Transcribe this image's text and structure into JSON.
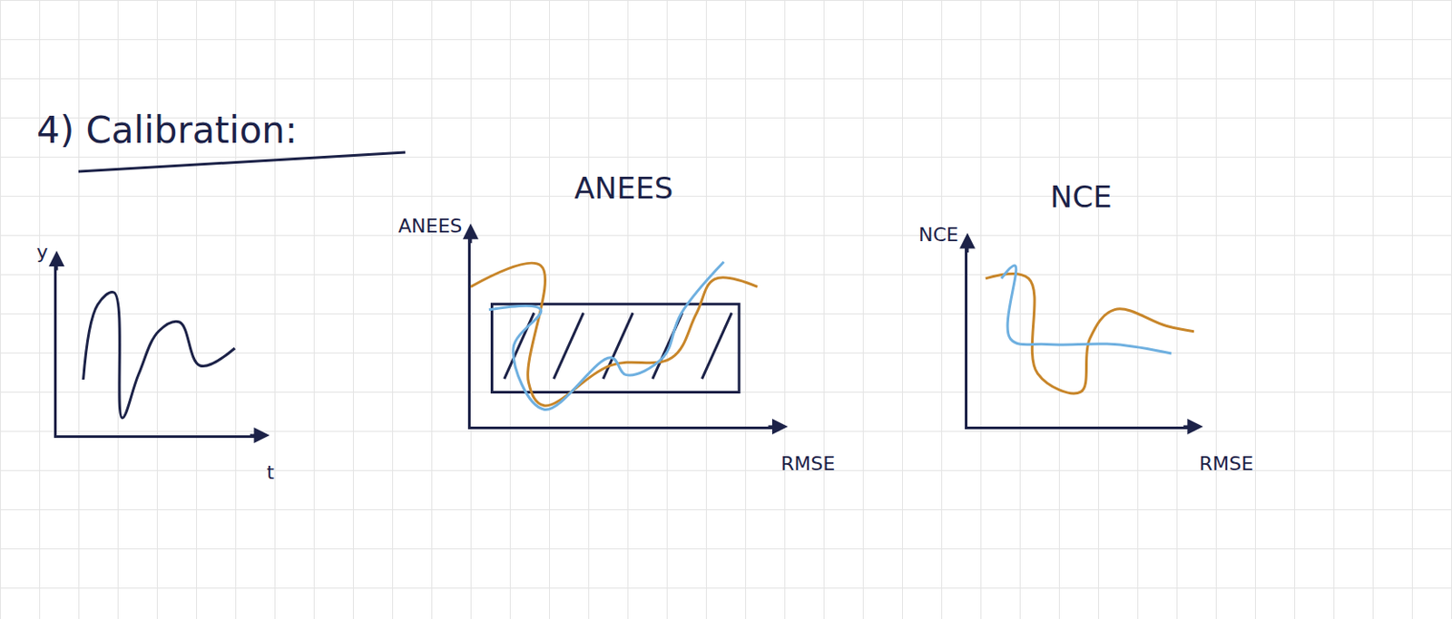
{
  "title": "4) Calibration:",
  "chart_data": [
    {
      "type": "line",
      "x_label": "t",
      "y_label": "y",
      "xlim": [
        0,
        10
      ],
      "ylim": [
        0,
        10
      ],
      "tick_labels": false,
      "grid": false,
      "series": [
        {
          "color": "#1c2248",
          "x": [
            1.3,
            2.0,
            2.8,
            3.2,
            4.0,
            5.0,
            6.0,
            7.0,
            8.7
          ],
          "values": [
            3.2,
            7.5,
            8.2,
            1.0,
            3.5,
            6.0,
            6.5,
            4.0,
            5.0
          ]
        }
      ]
    },
    {
      "type": "line",
      "title": "ANEES",
      "x_label": "RMSE",
      "y_label": "ANEES",
      "xlim": [
        0,
        10
      ],
      "ylim": [
        0,
        10
      ],
      "tick_labels": false,
      "grid": false,
      "band": {
        "x": [
          0.7,
          8.8
        ],
        "y": [
          1.8,
          6.4
        ]
      },
      "series": [
        {
          "color": "#c8862a",
          "x": [
            0,
            2.3,
            1.9,
            2.4,
            4.6,
            6.6,
            7.4,
            8.0,
            9.4
          ],
          "values": [
            7.3,
            8.4,
            2.3,
            1.1,
            3.2,
            3.6,
            5.9,
            7.7,
            7.3
          ]
        },
        {
          "color": "#6fb0e0",
          "x": [
            0.6,
            2.3,
            1.4,
            2.4,
            4.6,
            5.1,
            6.3,
            6.9,
            8.3
          ],
          "values": [
            6.1,
            6.1,
            4.1,
            0.9,
            3.6,
            2.7,
            3.6,
            5.9,
            8.6
          ]
        }
      ]
    },
    {
      "type": "line",
      "title": "NCE",
      "x_label": "RMSE",
      "y_label": "NCE",
      "xlim": [
        0,
        10
      ],
      "ylim": [
        0,
        10
      ],
      "tick_labels": false,
      "grid": false,
      "series": [
        {
          "color": "#c8862a",
          "x": [
            0.8,
            2.7,
            3.1,
            5.0,
            5.4,
            6.5,
            8.8,
            10.0
          ],
          "values": [
            8.1,
            8.1,
            2.9,
            1.9,
            4.8,
            6.4,
            5.5,
            5.2
          ]
        },
        {
          "color": "#6fb0e0",
          "x": [
            1.5,
            2.1,
            1.9,
            3.5,
            6.5,
            9.0
          ],
          "values": [
            8.1,
            8.8,
            4.8,
            4.5,
            4.5,
            4.0
          ]
        }
      ]
    }
  ]
}
